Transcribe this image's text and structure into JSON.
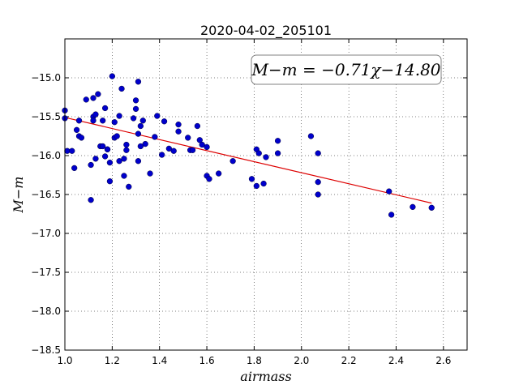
{
  "chart_data": {
    "type": "scatter",
    "title": "2020-04-02_205101",
    "xlabel": "airmass",
    "ylabel": "M−m",
    "xlim": [
      1.0,
      2.7
    ],
    "ylim": [
      -18.5,
      -14.5
    ],
    "x_ticks": [
      "1.0",
      "1.2",
      "1.4",
      "1.6",
      "1.8",
      "2.0",
      "2.2",
      "2.4",
      "2.6"
    ],
    "y_ticks": [
      "−15.0",
      "−15.5",
      "−16.0",
      "−16.5",
      "−17.0",
      "−17.5",
      "−18.0",
      "−18.5"
    ],
    "grid": true,
    "annotation": "M−m = −0.71χ−14.80",
    "marker_color": "#0000cc",
    "fit_color": "#dd0000",
    "fit": {
      "slope": -0.71,
      "intercept": -14.8,
      "x_range": [
        1.0,
        2.55
      ]
    },
    "points": [
      [
        1.0,
        -15.42
      ],
      [
        1.0,
        -15.52
      ],
      [
        1.01,
        -15.94
      ],
      [
        1.03,
        -15.94
      ],
      [
        1.04,
        -16.16
      ],
      [
        1.05,
        -15.67
      ],
      [
        1.06,
        -15.55
      ],
      [
        1.06,
        -15.75
      ],
      [
        1.07,
        -15.77
      ],
      [
        1.09,
        -15.28
      ],
      [
        1.11,
        -16.12
      ],
      [
        1.11,
        -16.57
      ],
      [
        1.12,
        -15.26
      ],
      [
        1.12,
        -15.5
      ],
      [
        1.12,
        -15.55
      ],
      [
        1.13,
        -15.47
      ],
      [
        1.13,
        -16.04
      ],
      [
        1.14,
        -15.21
      ],
      [
        1.15,
        -15.88
      ],
      [
        1.16,
        -15.55
      ],
      [
        1.16,
        -15.88
      ],
      [
        1.17,
        -16.01
      ],
      [
        1.17,
        -15.39
      ],
      [
        1.18,
        -15.92
      ],
      [
        1.18,
        -15.92
      ],
      [
        1.19,
        -16.09
      ],
      [
        1.19,
        -16.33
      ],
      [
        1.2,
        -14.98
      ],
      [
        1.21,
        -15.57
      ],
      [
        1.21,
        -15.77
      ],
      [
        1.22,
        -15.75
      ],
      [
        1.23,
        -15.49
      ],
      [
        1.23,
        -16.07
      ],
      [
        1.24,
        -15.14
      ],
      [
        1.25,
        -16.26
      ],
      [
        1.25,
        -16.04
      ],
      [
        1.26,
        -15.86
      ],
      [
        1.26,
        -15.93
      ],
      [
        1.27,
        -16.4
      ],
      [
        1.29,
        -15.52
      ],
      [
        1.3,
        -15.4
      ],
      [
        1.3,
        -15.29
      ],
      [
        1.31,
        -15.05
      ],
      [
        1.31,
        -15.72
      ],
      [
        1.31,
        -16.07
      ],
      [
        1.32,
        -15.62
      ],
      [
        1.32,
        -15.88
      ],
      [
        1.33,
        -15.55
      ],
      [
        1.34,
        -15.85
      ],
      [
        1.36,
        -16.23
      ],
      [
        1.38,
        -15.76
      ],
      [
        1.39,
        -15.49
      ],
      [
        1.41,
        -15.99
      ],
      [
        1.42,
        -15.56
      ],
      [
        1.44,
        -15.91
      ],
      [
        1.46,
        -15.94
      ],
      [
        1.48,
        -15.6
      ],
      [
        1.48,
        -15.69
      ],
      [
        1.52,
        -15.77
      ],
      [
        1.53,
        -15.93
      ],
      [
        1.54,
        -15.93
      ],
      [
        1.56,
        -15.62
      ],
      [
        1.57,
        -15.8
      ],
      [
        1.58,
        -15.86
      ],
      [
        1.6,
        -16.26
      ],
      [
        1.6,
        -15.89
      ],
      [
        1.61,
        -16.3
      ],
      [
        1.65,
        -16.23
      ],
      [
        1.71,
        -16.07
      ],
      [
        1.79,
        -16.3
      ],
      [
        1.81,
        -15.92
      ],
      [
        1.81,
        -16.39
      ],
      [
        1.82,
        -15.97
      ],
      [
        1.84,
        -16.36
      ],
      [
        1.85,
        -16.02
      ],
      [
        1.9,
        -15.81
      ],
      [
        1.9,
        -15.97
      ],
      [
        2.04,
        -15.75
      ],
      [
        2.07,
        -15.97
      ],
      [
        2.07,
        -16.34
      ],
      [
        2.07,
        -16.5
      ],
      [
        2.37,
        -16.46
      ],
      [
        2.38,
        -16.76
      ],
      [
        2.47,
        -16.66
      ],
      [
        2.55,
        -16.67
      ]
    ]
  }
}
